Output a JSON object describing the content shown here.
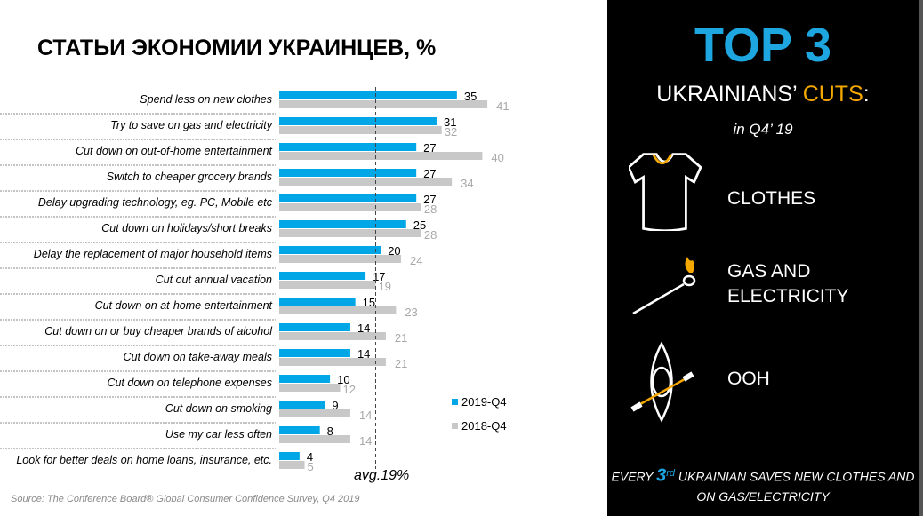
{
  "title": "СТАТЬИ ЭКОНОМИИ УКРАИНЦЕВ, %",
  "source": "Source: The Conference Board® Global Consumer Confidence Survey, Q4  2019",
  "chart_data": {
    "type": "bar",
    "orientation": "horizontal",
    "categories": [
      "Spend less on new clothes",
      "Try to save on gas and electricity",
      "Cut down on out-of-home entertainment",
      "Switch to cheaper grocery brands",
      "Delay upgrading technology, eg. PC, Mobile etc",
      "Cut down on holidays/short breaks",
      "Delay the replacement of major household items",
      "Cut out annual vacation",
      "Cut down on at-home entertainment",
      "Cut down on or buy cheaper brands of alcohol",
      "Cut down on take-away meals",
      "Cut down on telephone expenses",
      "Cut down on smoking",
      "Use my car less often",
      "Look for better deals on home loans, insurance, etc."
    ],
    "series": [
      {
        "name": "2019-Q4",
        "color": "#00a6e6",
        "values": [
          35,
          31,
          27,
          27,
          27,
          25,
          20,
          17,
          15,
          14,
          14,
          10,
          9,
          8,
          4
        ]
      },
      {
        "name": "2018-Q4",
        "color": "#c8c8c8",
        "values": [
          41,
          32,
          40,
          34,
          28,
          28,
          24,
          19,
          23,
          21,
          21,
          12,
          14,
          14,
          5
        ]
      }
    ],
    "reference_line": {
      "value": 19,
      "label": "avg.19%",
      "style": "dashed"
    },
    "legend_placement": "right",
    "grid": false
  },
  "panel": {
    "top": "TOP 3",
    "cuts_prefix": "UKRAINIANS’ ",
    "cuts_highlight": "CUTS",
    "cuts_suffix": ":",
    "period": "in Q4’ 19",
    "items": [
      {
        "icon": "t-shirt-icon",
        "label": "CLOTHES"
      },
      {
        "icon": "match-icon",
        "label": "GAS AND ELECTRICITY"
      },
      {
        "icon": "kayak-icon",
        "label": "OOH"
      }
    ],
    "footer_pre": "EVERY ",
    "footer_num": "3",
    "footer_sup": "rd",
    "footer_post": "  UKRAINIAN SAVES NEW CLOTHES  AND ON GAS/ELECTRICITY",
    "accent": "#f5a800",
    "brand": "#1ea6e0"
  }
}
